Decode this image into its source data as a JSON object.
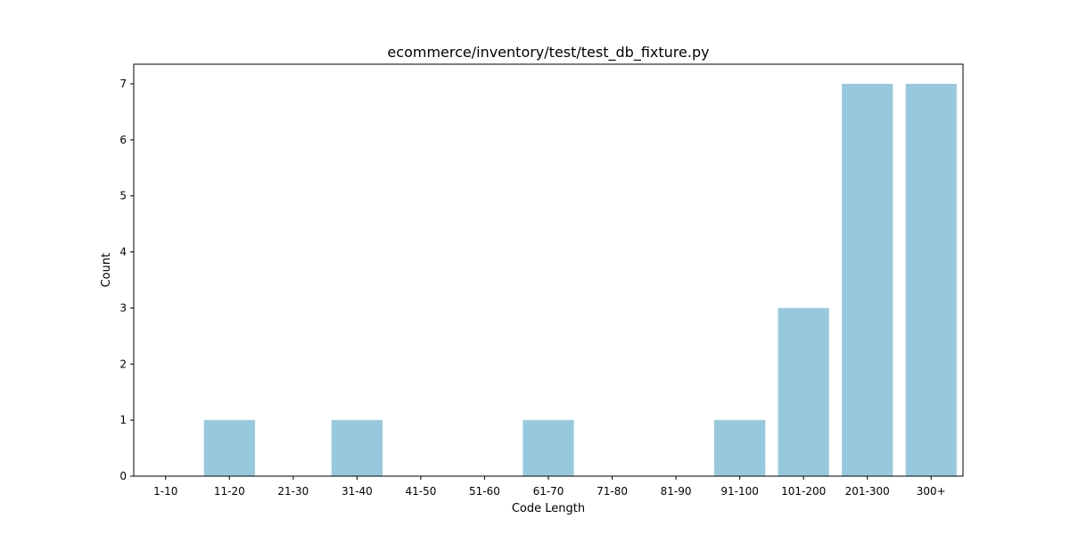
{
  "chart_data": {
    "type": "bar",
    "title": "ecommerce/inventory/test/test_db_fixture.py",
    "xlabel": "Code Length",
    "ylabel": "Count",
    "categories": [
      "1-10",
      "11-20",
      "21-30",
      "31-40",
      "41-50",
      "51-60",
      "61-70",
      "71-80",
      "81-90",
      "91-100",
      "101-200",
      "201-300",
      "300+"
    ],
    "values": [
      0,
      1,
      0,
      1,
      0,
      0,
      1,
      0,
      0,
      1,
      3,
      7,
      7
    ],
    "ylim": [
      0,
      7.35
    ],
    "yticks": [
      0,
      1,
      2,
      3,
      4,
      5,
      6,
      7
    ],
    "bar_color": "#96c9de",
    "grid": false,
    "legend": "none"
  }
}
